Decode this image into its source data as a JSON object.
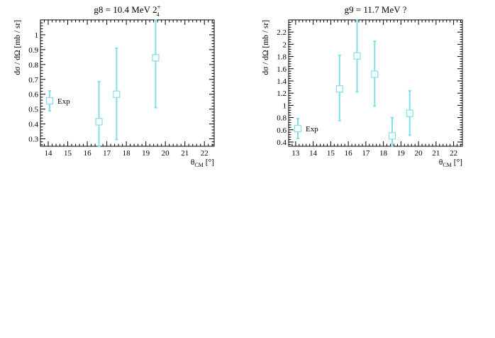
{
  "chart_data": [
    {
      "type": "scatter",
      "title": "g8 = 10.4 MeV 2",
      "title_sup": "+",
      "title_sub": "4",
      "xlabel": "θ",
      "xlabel_sub": "CM",
      "xlabel_unit": " [°]",
      "ylabel": "dσ / dΩ [mb / sr]",
      "xlim": [
        13.6,
        22.5
      ],
      "ylim": [
        0.25,
        1.1
      ],
      "x_ticks": [
        14,
        15,
        16,
        17,
        18,
        19,
        20,
        21,
        22
      ],
      "y_ticks": [
        0.3,
        0.4,
        0.5,
        0.6,
        0.7,
        0.8,
        0.9,
        1
      ],
      "legend": {
        "label": "Exp",
        "placement": "left-middle"
      },
      "marker_color": "#7fdfef",
      "series": [
        {
          "name": "Exp",
          "points": [
            {
              "x": 16.6,
              "y": 0.415,
              "ylo": 0.25,
              "yhi": 0.685
            },
            {
              "x": 17.5,
              "y": 0.6,
              "ylo": 0.295,
              "yhi": 0.91
            },
            {
              "x": 19.5,
              "y": 0.845,
              "ylo": 0.51,
              "yhi": 1.1
            }
          ]
        }
      ]
    },
    {
      "type": "scatter",
      "title": "g9 = 11.7 MeV ?",
      "xlabel": "θ",
      "xlabel_sub": "CM",
      "xlabel_unit": " [°]",
      "ylabel": "dσ / dΩ [mb / sr]",
      "xlim": [
        12.6,
        22.5
      ],
      "ylim": [
        0.33,
        2.4
      ],
      "x_ticks": [
        13,
        14,
        15,
        16,
        17,
        18,
        19,
        20,
        21,
        22
      ],
      "y_ticks": [
        0.4,
        0.6,
        0.8,
        1,
        1.2,
        1.4,
        1.6,
        1.8,
        2,
        2.2
      ],
      "legend": {
        "label": "Exp",
        "placement": "bottom-left"
      },
      "marker_color": "#7fdfef",
      "series": [
        {
          "name": "Exp",
          "points": [
            {
              "x": 15.5,
              "y": 1.27,
              "ylo": 0.75,
              "yhi": 1.82
            },
            {
              "x": 16.5,
              "y": 1.81,
              "ylo": 1.22,
              "yhi": 2.4
            },
            {
              "x": 17.5,
              "y": 1.51,
              "ylo": 0.99,
              "yhi": 2.05
            },
            {
              "x": 18.5,
              "y": 0.5,
              "ylo": 0.33,
              "yhi": 0.8
            },
            {
              "x": 19.5,
              "y": 0.87,
              "ylo": 0.51,
              "yhi": 1.24
            }
          ]
        }
      ]
    }
  ]
}
